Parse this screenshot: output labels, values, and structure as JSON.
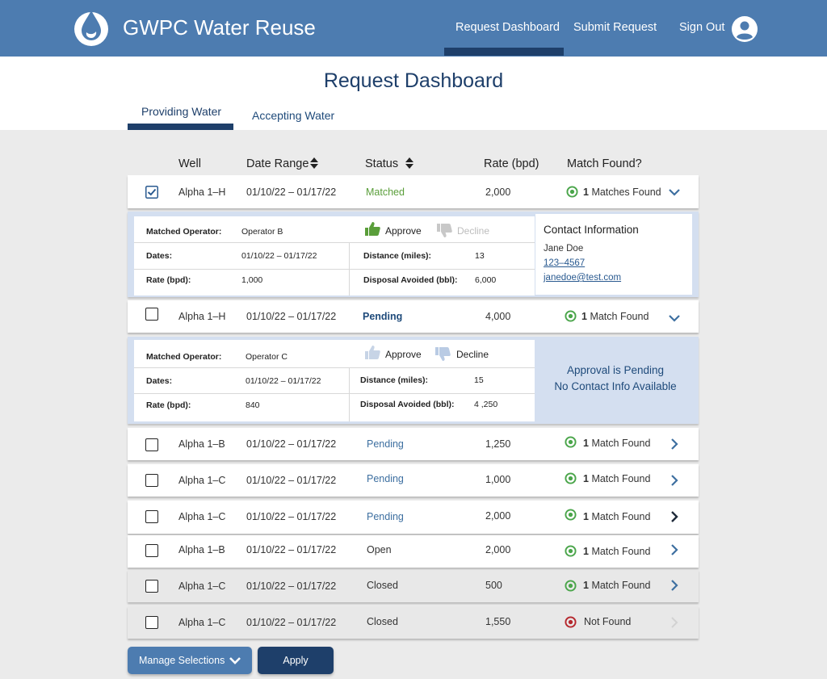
{
  "header": {
    "brand": "GWPC Water Reuse",
    "nav": [
      "Request Dashboard",
      "Submit Request",
      "Sign Out"
    ]
  },
  "page": {
    "title": "Request Dashboard",
    "tabs": [
      "Providing Water",
      "Accepting Water"
    ]
  },
  "columns": [
    "Well",
    "Date Range",
    "Status",
    "Rate (bpd)",
    "Match Found?"
  ],
  "rows": [
    {
      "well": "Alpha 1–H",
      "dates": "01/10/22 – 01/17/22",
      "status": "Matched",
      "rate": "2,000",
      "match_count": "1",
      "match_label": "Matches Found"
    },
    {
      "well": "Alpha 1–H",
      "dates": "01/10/22 – 01/17/22",
      "status": "Pending",
      "rate": "4,000",
      "match_count": "1",
      "match_label": "Match Found"
    },
    {
      "well": "Alpha 1–B",
      "dates": "01/10/22 – 01/17/22",
      "status": "Pending",
      "rate": "1,250",
      "match_count": "1",
      "match_label": "Match Found"
    },
    {
      "well": "Alpha 1–C",
      "dates": "01/10/22 – 01/17/22",
      "status": "Pending",
      "rate": "1,000",
      "match_count": "1",
      "match_label": "Match Found"
    },
    {
      "well": "Alpha 1–C",
      "dates": "01/10/22 – 01/17/22",
      "status": "Pending",
      "rate": "2,000",
      "match_count": "1",
      "match_label": "Match Found"
    },
    {
      "well": "Alpha 1–B",
      "dates": "01/10/22 – 01/17/22",
      "status": "Open",
      "rate": "2,000",
      "match_count": "1",
      "match_label": "Match Found"
    },
    {
      "well": "Alpha 1–C",
      "dates": "01/10/22 – 01/17/22",
      "status": "Closed",
      "rate": "500",
      "match_count": "1",
      "match_label": "Match Found"
    },
    {
      "well": "Alpha 1–C",
      "dates": "01/10/22 – 01/17/22",
      "status": "Closed",
      "rate": "1,550",
      "match_count": "",
      "match_label": "Not Found"
    }
  ],
  "detail1": {
    "labels": {
      "operator": "Matched Operator:",
      "dates": "Dates:",
      "rate": "Rate (bpd):",
      "distance": "Distance (miles):",
      "disposal": "Disposal Avoided (bbl):"
    },
    "operator": "Operator B",
    "dates": "01/10/22 – 01/17/22",
    "rate": "1,000",
    "distance": "13",
    "disposal": "6,000",
    "approve": "Approve",
    "decline": "Decline",
    "contact": {
      "title": "Contact Information",
      "name": "Jane Doe",
      "phone": "123–4567",
      "email": "janedoe@test.com"
    }
  },
  "detail2": {
    "labels": {
      "operator": "Matched Operator:",
      "dates": "Dates:",
      "rate": "Rate (bpd):",
      "distance": "Distance (miles):",
      "disposal": "Disposal Avoided (bbl):"
    },
    "operator": "Operator C",
    "dates": "01/10/22 – 01/17/22",
    "rate": "840",
    "distance": "15",
    "disposal": "4 ,250",
    "approve": "Approve",
    "decline": "Decline",
    "pending": {
      "line1": "Approval is Pending",
      "line2": "No Contact Info Available"
    }
  },
  "actions": {
    "manage": "Manage Selections",
    "apply": "Apply"
  },
  "colors": {
    "header_blue": "#4d7cb0",
    "dark_navy": "#1e3f6a",
    "matched_green": "#5a9e3a",
    "target_green": "#4aa54a",
    "target_red": "#b5272d",
    "panel_blue": "#d4dff0"
  }
}
